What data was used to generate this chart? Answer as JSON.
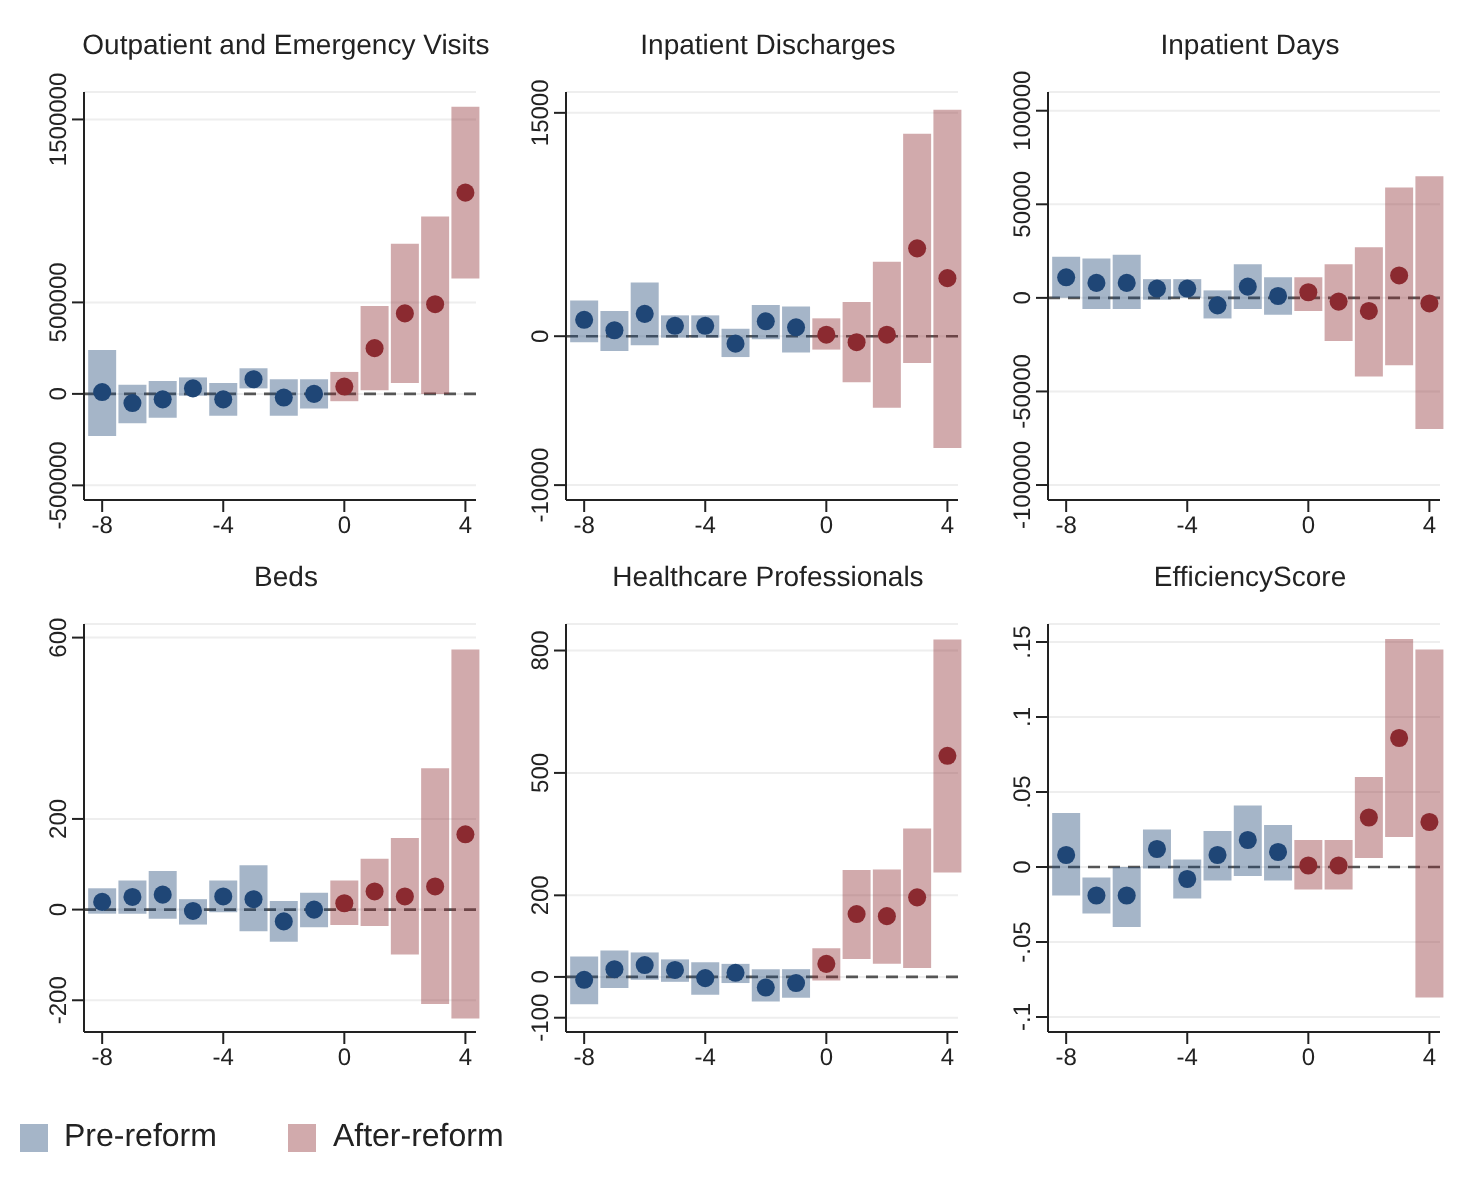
{
  "chart_data": [
    {
      "type": "scatter",
      "title": "Outpatient and Emergency Visits",
      "xlim": [
        -8.6,
        4.35
      ],
      "xticks": [
        -8,
        -4,
        0,
        4
      ],
      "ylim": [
        -580000,
        1650000
      ],
      "yticks": [
        -500000,
        0,
        500000,
        1500000
      ],
      "grid": "y",
      "legend": "bottom",
      "marker": "circle",
      "ref_lines": [
        {
          "axis": "y",
          "value": 0,
          "line_style": "dashed",
          "color": "#555555"
        }
      ],
      "series": [
        {
          "name": "Pre-reform",
          "color": "#1f4676",
          "x": [
            -8,
            -7,
            -6,
            -5,
            -4,
            -3,
            -2,
            -1
          ],
          "values": [
            10000,
            -50000,
            -30000,
            30000,
            -30000,
            80000,
            -20000,
            0
          ],
          "errors": [
            [
              -230000,
              240000
            ],
            [
              -160000,
              50000
            ],
            [
              -130000,
              70000
            ],
            [
              -10000,
              90000
            ],
            [
              -120000,
              60000
            ],
            [
              30000,
              140000
            ],
            [
              -120000,
              80000
            ],
            [
              -80000,
              80000
            ]
          ]
        },
        {
          "name": "After-reform",
          "color": "#8b2a30",
          "x": [
            0,
            1,
            2,
            3,
            4
          ],
          "values": [
            40000,
            250000,
            440000,
            490000,
            1100000
          ],
          "errors": [
            [
              -40000,
              120000
            ],
            [
              20000,
              480000
            ],
            [
              60000,
              820000
            ],
            [
              0,
              970000
            ],
            [
              630000,
              1570000
            ]
          ]
        }
      ]
    },
    {
      "type": "scatter",
      "title": "Inpatient Discharges",
      "xlim": [
        -8.6,
        4.35
      ],
      "xticks": [
        -8,
        -4,
        0,
        4
      ],
      "ylim": [
        -11000,
        16400
      ],
      "yticks": [
        -10000,
        0,
        15000
      ],
      "grid": "y",
      "marker": "circle",
      "ref_lines": [
        {
          "axis": "y",
          "value": 0,
          "line_style": "dashed",
          "color": "#555555"
        }
      ],
      "series": [
        {
          "color": "#1f4676",
          "x": [
            -8,
            -7,
            -6,
            -5,
            -4,
            -3,
            -2,
            -1
          ],
          "values": [
            1100,
            400,
            1500,
            700,
            700,
            -500,
            1000,
            600
          ],
          "errors": [
            [
              -400,
              2400
            ],
            [
              -1000,
              1700
            ],
            [
              -600,
              3600
            ],
            [
              -100,
              1400
            ],
            [
              -100,
              1400
            ],
            [
              -1400,
              500
            ],
            [
              -200,
              2100
            ],
            [
              -1100,
              2000
            ]
          ]
        },
        {
          "color": "#8b2a30",
          "x": [
            0,
            1,
            2,
            3,
            4
          ],
          "values": [
            100,
            -400,
            100,
            5900,
            3900
          ],
          "errors": [
            [
              -900,
              1200
            ],
            [
              -3100,
              2300
            ],
            [
              -4800,
              5000
            ],
            [
              -1800,
              13600
            ],
            [
              -7500,
              15200
            ]
          ]
        }
      ]
    },
    {
      "type": "scatter",
      "title": "Inpatient Days",
      "xlim": [
        -8.6,
        4.35
      ],
      "xticks": [
        -8,
        -4,
        0,
        4
      ],
      "ylim": [
        -108000,
        110000
      ],
      "yticks": [
        -100000,
        -50000,
        0,
        50000,
        100000
      ],
      "grid": "y",
      "marker": "circle",
      "ref_lines": [
        {
          "axis": "y",
          "value": 0,
          "line_style": "dashed",
          "color": "#555555"
        }
      ],
      "series": [
        {
          "color": "#1f4676",
          "x": [
            -8,
            -7,
            -6,
            -5,
            -4,
            -3,
            -2,
            -1
          ],
          "values": [
            11000,
            8000,
            8000,
            5000,
            5000,
            -4000,
            6000,
            1000
          ],
          "errors": [
            [
              0,
              22000
            ],
            [
              -6000,
              21000
            ],
            [
              -6000,
              23000
            ],
            [
              -1000,
              10000
            ],
            [
              0,
              10000
            ],
            [
              -11000,
              4000
            ],
            [
              -6000,
              18000
            ],
            [
              -9000,
              11000
            ]
          ]
        },
        {
          "color": "#8b2a30",
          "x": [
            0,
            1,
            2,
            3,
            4
          ],
          "values": [
            3000,
            -2000,
            -7000,
            12000,
            -3000
          ],
          "errors": [
            [
              -7000,
              11000
            ],
            [
              -23000,
              18000
            ],
            [
              -42000,
              27000
            ],
            [
              -36000,
              59000
            ],
            [
              -70000,
              65000
            ]
          ]
        }
      ]
    },
    {
      "type": "scatter",
      "title": "Beds",
      "xlim": [
        -8.6,
        4.35
      ],
      "xticks": [
        -8,
        -4,
        0,
        4
      ],
      "ylim": [
        -270,
        630
      ],
      "yticks": [
        -200,
        0,
        200,
        600
      ],
      "grid": "y",
      "marker": "circle",
      "ref_lines": [
        {
          "axis": "y",
          "value": 0,
          "line_style": "dashed",
          "color": "#555555"
        }
      ],
      "series": [
        {
          "color": "#1f4676",
          "x": [
            -8,
            -7,
            -6,
            -5,
            -4,
            -3,
            -2,
            -1
          ],
          "values": [
            17,
            28,
            33,
            -3,
            29,
            23,
            -26,
            0
          ],
          "errors": [
            [
              -9,
              47
            ],
            [
              -9,
              64
            ],
            [
              -20,
              85
            ],
            [
              -33,
              23
            ],
            [
              -6,
              64
            ],
            [
              -48,
              98
            ],
            [
              -71,
              19
            ],
            [
              -39,
              37
            ]
          ]
        },
        {
          "color": "#8b2a30",
          "x": [
            0,
            1,
            2,
            3,
            4
          ],
          "values": [
            14,
            40,
            29,
            51,
            166
          ],
          "errors": [
            [
              -34,
              64
            ],
            [
              -36,
              112
            ],
            [
              -99,
              158
            ],
            [
              -208,
              312
            ],
            [
              -240,
              574
            ]
          ]
        }
      ]
    },
    {
      "type": "scatter",
      "title": "Healthcare Professionals",
      "xlim": [
        -8.6,
        4.35
      ],
      "xticks": [
        -8,
        -4,
        0,
        4
      ],
      "ylim": [
        -135,
        865
      ],
      "yticks": [
        -100,
        0,
        200,
        500,
        800
      ],
      "grid": "y",
      "marker": "circle",
      "ref_lines": [
        {
          "axis": "y",
          "value": 0,
          "line_style": "dashed",
          "color": "#555555"
        }
      ],
      "series": [
        {
          "color": "#1f4676",
          "x": [
            -8,
            -7,
            -6,
            -5,
            -4,
            -3,
            -2,
            -1
          ],
          "values": [
            -7,
            19,
            29,
            17,
            -3,
            10,
            -26,
            -15
          ],
          "errors": [
            [
              -67,
              50
            ],
            [
              -27,
              65
            ],
            [
              -7,
              60
            ],
            [
              -12,
              43
            ],
            [
              -44,
              36
            ],
            [
              -15,
              32
            ],
            [
              -60,
              19
            ],
            [
              -51,
              19
            ]
          ]
        },
        {
          "color": "#8b2a30",
          "x": [
            0,
            1,
            2,
            3,
            4
          ],
          "values": [
            32,
            154,
            149,
            195,
            542
          ],
          "errors": [
            [
              -9,
              70
            ],
            [
              44,
              262
            ],
            [
              32,
              263
            ],
            [
              22,
              364
            ],
            [
              256,
              827
            ]
          ]
        }
      ]
    },
    {
      "type": "scatter",
      "title": "EfficiencyScore",
      "xlim": [
        -8.6,
        4.35
      ],
      "xticks": [
        -8,
        -4,
        0,
        4
      ],
      "ylim": [
        -0.11,
        0.162
      ],
      "yticks": [
        {
          "value": -0.1,
          "label": "-.1"
        },
        {
          "value": -0.05,
          "label": "-.05"
        },
        0,
        {
          "value": 0.05,
          "label": ".05"
        },
        {
          "value": 0.1,
          "label": ".1"
        },
        {
          "value": 0.15,
          "label": ".15"
        }
      ],
      "grid": "y",
      "marker": "circle",
      "ref_lines": [
        {
          "axis": "y",
          "value": 0,
          "line_style": "dashed",
          "color": "#555555"
        }
      ],
      "series": [
        {
          "color": "#1f4676",
          "x": [
            -8,
            -7,
            -6,
            -5,
            -4,
            -3,
            -2,
            -1
          ],
          "values": [
            0.008,
            -0.019,
            -0.019,
            0.012,
            -0.008,
            0.008,
            0.018,
            0.01
          ],
          "errors": [
            [
              -0.019,
              0.036
            ],
            [
              -0.031,
              -0.007
            ],
            [
              -0.04,
              0
            ],
            [
              -0.001,
              0.025
            ],
            [
              -0.021,
              0.005
            ],
            [
              -0.009,
              0.024
            ],
            [
              -0.006,
              0.041
            ],
            [
              -0.009,
              0.028
            ]
          ]
        },
        {
          "color": "#8b2a30",
          "x": [
            0,
            1,
            2,
            3,
            4
          ],
          "values": [
            0.001,
            0.001,
            0.033,
            0.086,
            0.03
          ],
          "errors": [
            [
              -0.015,
              0.018
            ],
            [
              -0.015,
              0.018
            ],
            [
              0.006,
              0.06
            ],
            [
              0.02,
              0.152
            ],
            [
              -0.087,
              0.145
            ]
          ]
        }
      ]
    }
  ]
}
